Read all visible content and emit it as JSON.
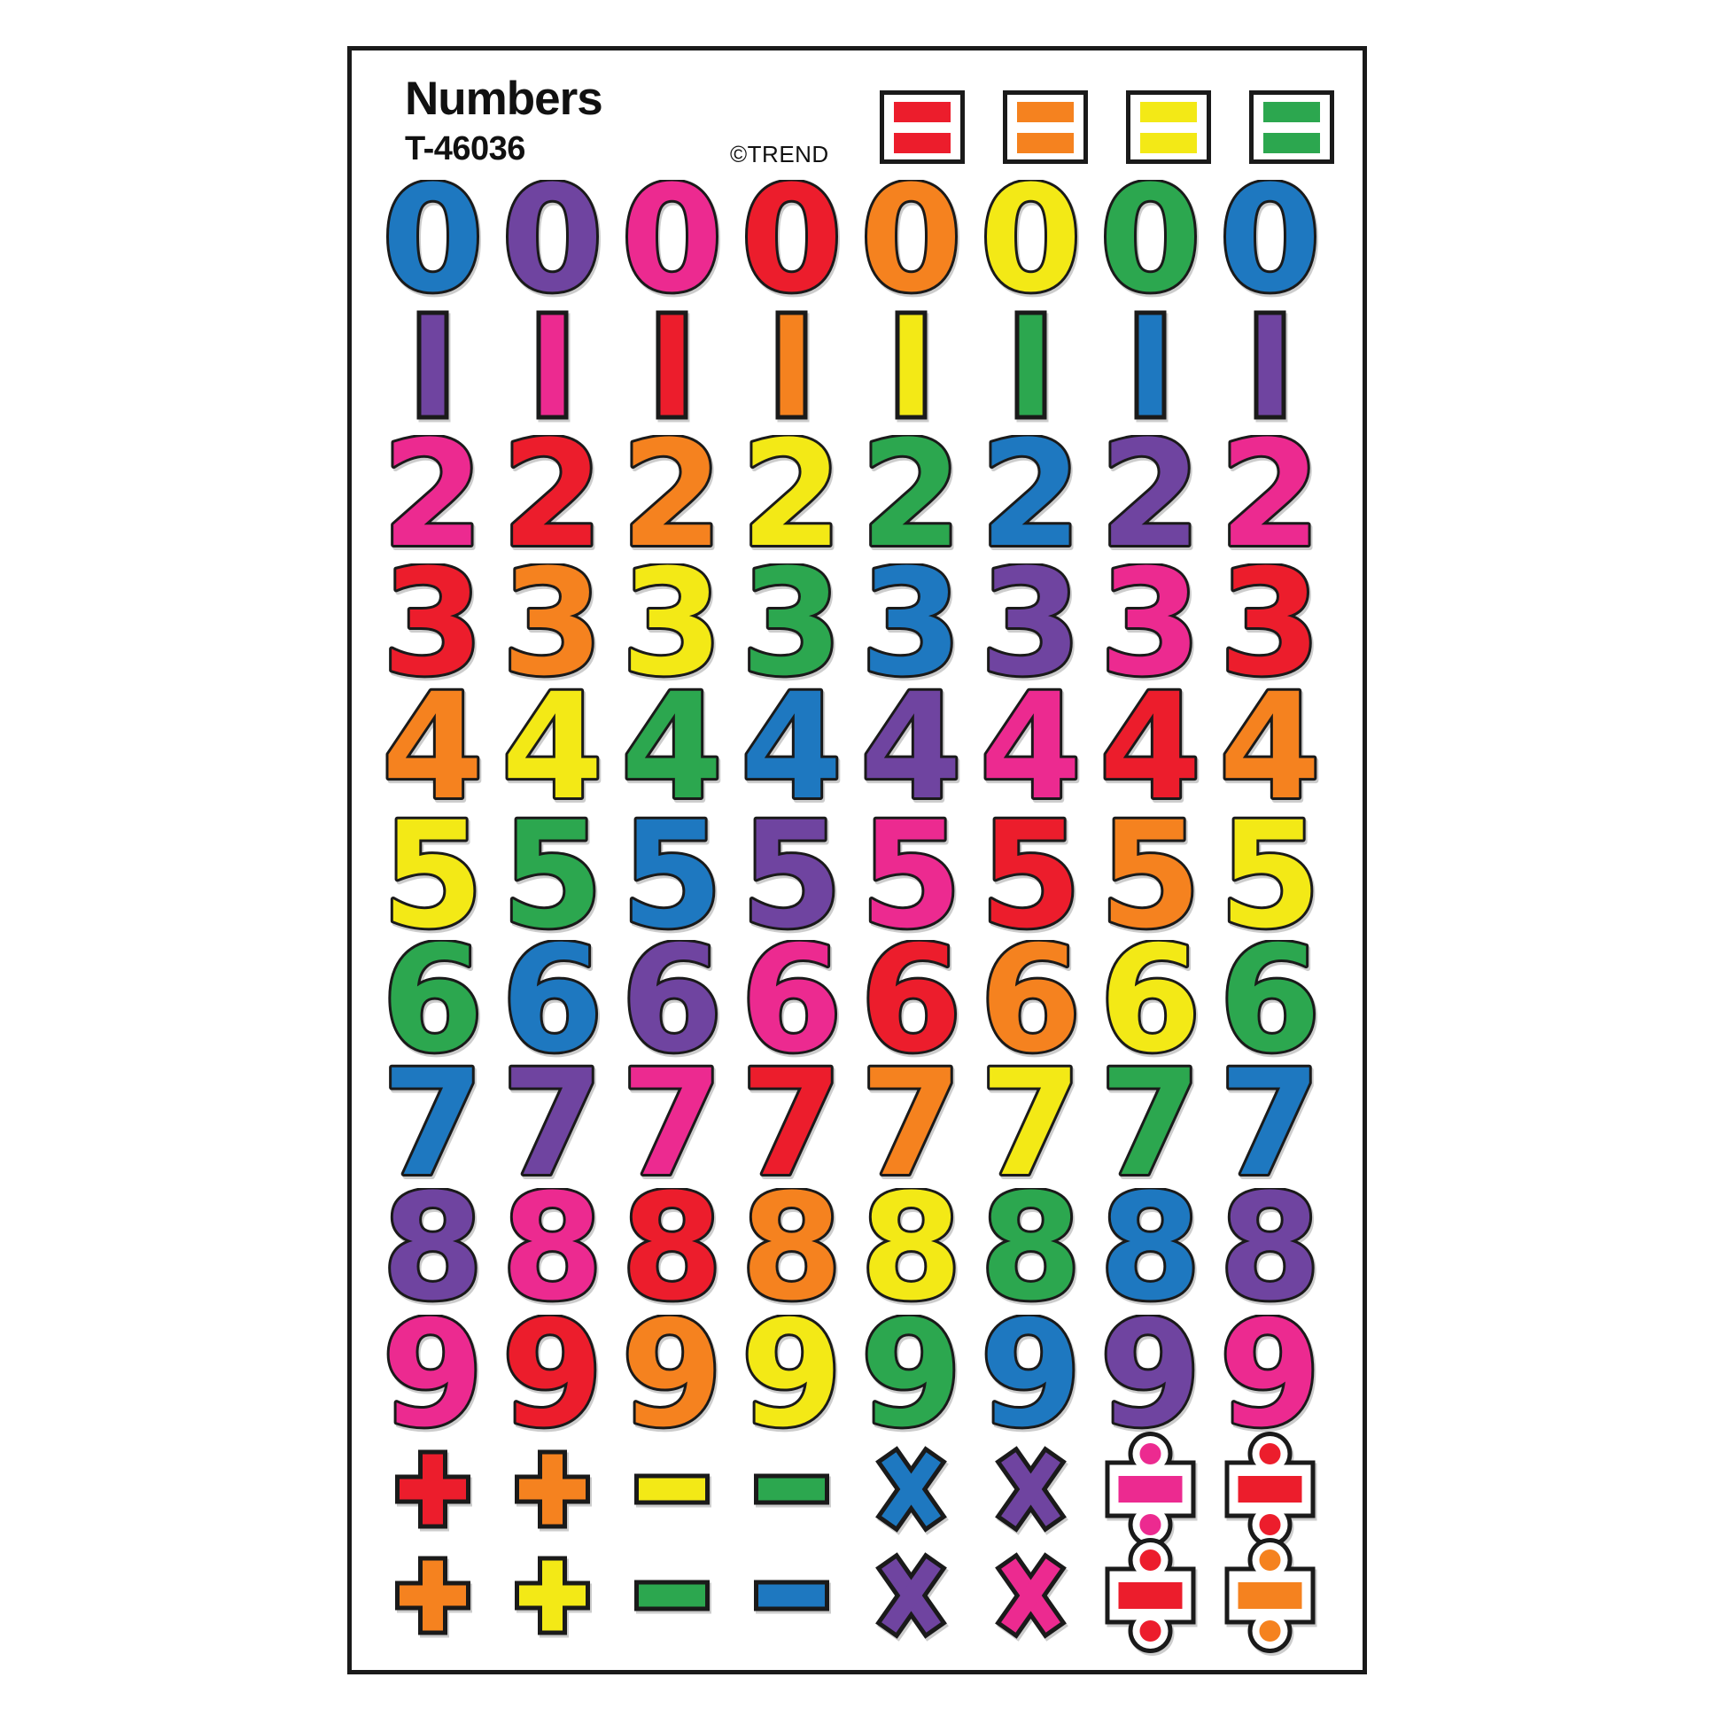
{
  "sheet": {
    "title": "Numbers",
    "product_code": "T-46036",
    "brand": "©TREND",
    "palette": {
      "blue": "#1e78c0",
      "purple": "#6f44a0",
      "pink": "#ec2a90",
      "red": "#ec1d2c",
      "orange": "#f5821f",
      "yellow": "#f3e916",
      "green": "#2ca74f",
      "outline": "#1a1a1a"
    },
    "equals_stickers": [
      "red",
      "orange",
      "yellow",
      "green"
    ],
    "number_rows": [
      {
        "digit": "0",
        "colors": [
          "blue",
          "purple",
          "pink",
          "red",
          "orange",
          "yellow",
          "green",
          "blue"
        ]
      },
      {
        "digit": "1",
        "colors": [
          "purple",
          "pink",
          "red",
          "orange",
          "yellow",
          "green",
          "blue",
          "purple"
        ]
      },
      {
        "digit": "2",
        "colors": [
          "pink",
          "red",
          "orange",
          "yellow",
          "green",
          "blue",
          "purple",
          "pink"
        ]
      },
      {
        "digit": "3",
        "colors": [
          "red",
          "orange",
          "yellow",
          "green",
          "blue",
          "purple",
          "pink",
          "red"
        ]
      },
      {
        "digit": "4",
        "colors": [
          "orange",
          "yellow",
          "green",
          "blue",
          "purple",
          "pink",
          "red",
          "orange"
        ]
      },
      {
        "digit": "5",
        "colors": [
          "yellow",
          "green",
          "blue",
          "purple",
          "pink",
          "red",
          "orange",
          "yellow"
        ]
      },
      {
        "digit": "6",
        "colors": [
          "green",
          "blue",
          "purple",
          "pink",
          "red",
          "orange",
          "yellow",
          "green"
        ]
      },
      {
        "digit": "7",
        "colors": [
          "blue",
          "purple",
          "pink",
          "red",
          "orange",
          "yellow",
          "green",
          "blue"
        ]
      },
      {
        "digit": "8",
        "colors": [
          "purple",
          "pink",
          "red",
          "orange",
          "yellow",
          "green",
          "blue",
          "purple"
        ]
      },
      {
        "digit": "9",
        "colors": [
          "pink",
          "red",
          "orange",
          "yellow",
          "green",
          "blue",
          "purple",
          "pink"
        ]
      }
    ],
    "operator_rows": [
      [
        {
          "op": "plus",
          "color": "red"
        },
        {
          "op": "plus",
          "color": "orange"
        },
        {
          "op": "minus",
          "color": "yellow"
        },
        {
          "op": "minus",
          "color": "green"
        },
        {
          "op": "times",
          "color": "blue"
        },
        {
          "op": "times",
          "color": "purple"
        },
        {
          "op": "divide",
          "color": "pink"
        },
        {
          "op": "divide",
          "color": "red"
        }
      ],
      [
        {
          "op": "plus",
          "color": "orange"
        },
        {
          "op": "plus",
          "color": "yellow"
        },
        {
          "op": "minus",
          "color": "green"
        },
        {
          "op": "minus",
          "color": "blue"
        },
        {
          "op": "times",
          "color": "purple"
        },
        {
          "op": "times",
          "color": "pink"
        },
        {
          "op": "divide",
          "color": "red"
        },
        {
          "op": "divide",
          "color": "orange"
        }
      ]
    ]
  }
}
